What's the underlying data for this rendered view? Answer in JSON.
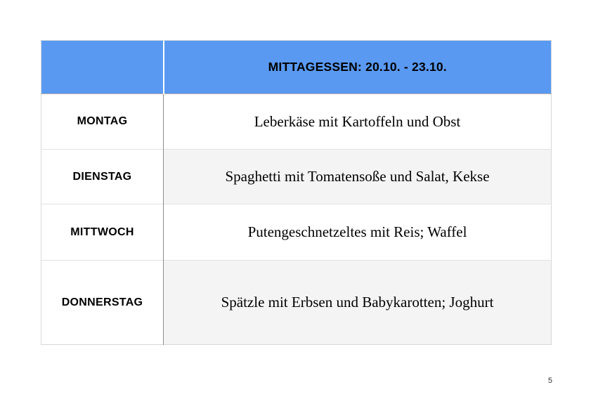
{
  "page": {
    "page_number": "5"
  },
  "table": {
    "header": {
      "corner": "",
      "title": "MITTAGESSEN: 20.10. - 23.10."
    },
    "rows": [
      {
        "day": "MONTAG",
        "meal": "Leberkäse mit Kartoffeln und Obst"
      },
      {
        "day": "DIENSTAG",
        "meal": "Spaghetti mit Tomatensoße und Salat, Kekse"
      },
      {
        "day": "MITTWOCH",
        "meal": "Putengeschnetzeltes mit Reis; Waffel"
      },
      {
        "day": "DONNERSTAG",
        "meal": "Spätzle mit Erbsen und Babykarotten; Joghurt"
      }
    ],
    "colors": {
      "header_background": "#5999F2",
      "shaded_row_background": "#F4F4F4",
      "body_divider": "#8E8E8E",
      "row_separator": "#E3E3E3",
      "text": "#000000"
    }
  }
}
